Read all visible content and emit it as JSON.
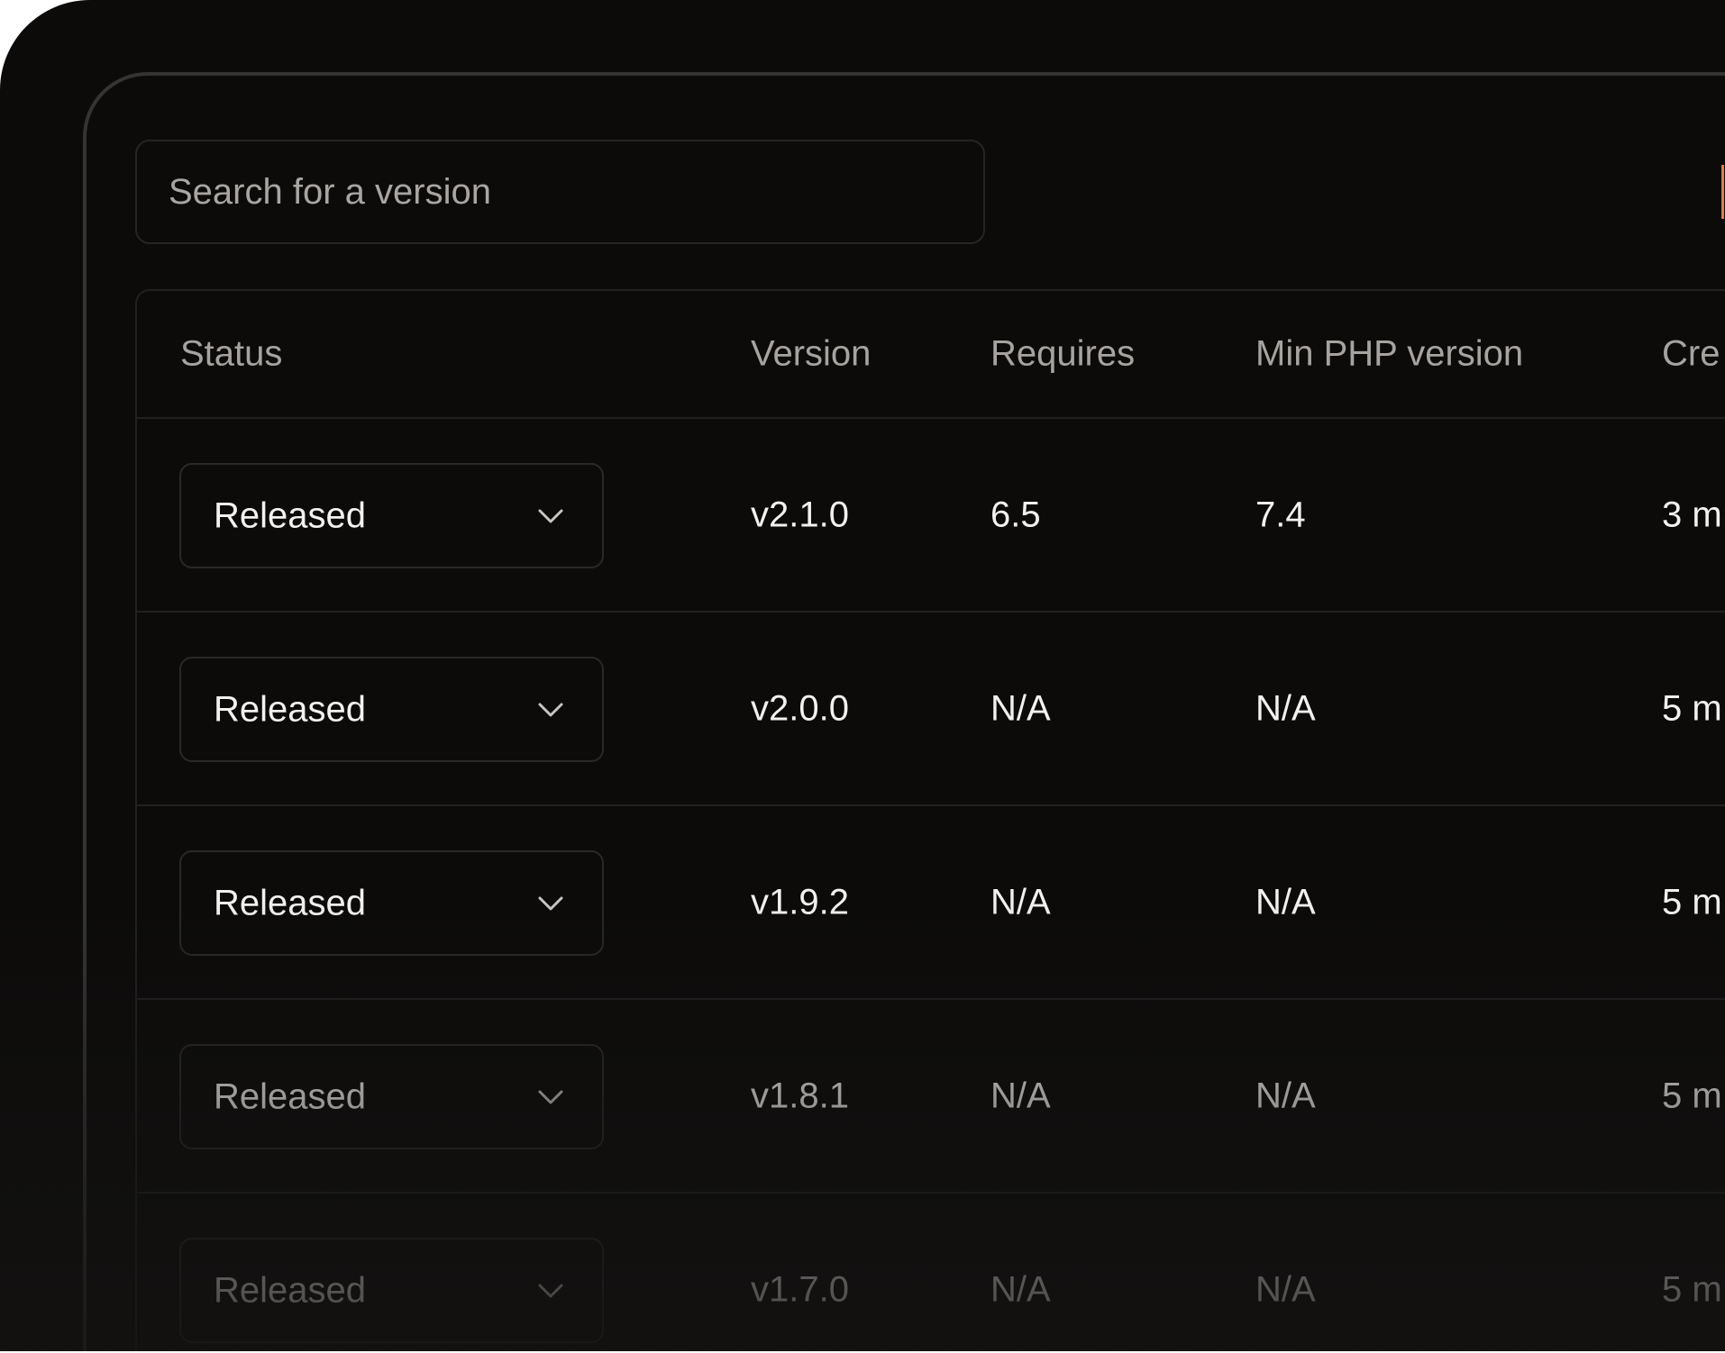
{
  "search": {
    "placeholder": "Search for a version"
  },
  "colors": {
    "background": "#0c0b0a",
    "border": "#343434",
    "accent": "#d9804a",
    "header_text": "#a6a3a0",
    "body_text": "#f2f1ef"
  },
  "table": {
    "headers": [
      "Status",
      "Version",
      "Requires",
      "Min PHP version",
      "Cre"
    ],
    "rows": [
      {
        "status": "Released",
        "version": "v2.1.0",
        "requires": "6.5",
        "min_php": "7.4",
        "created": "3 m"
      },
      {
        "status": "Released",
        "version": "v2.0.0",
        "requires": "N/A",
        "min_php": "N/A",
        "created": "5 m"
      },
      {
        "status": "Released",
        "version": "v1.9.2",
        "requires": "N/A",
        "min_php": "N/A",
        "created": "5 m"
      },
      {
        "status": "Released",
        "version": "v1.8.1",
        "requires": "N/A",
        "min_php": "N/A",
        "created": "5 m"
      },
      {
        "status": "Released",
        "version": "v1.7.0",
        "requires": "N/A",
        "min_php": "N/A",
        "created": "5 m"
      }
    ]
  }
}
